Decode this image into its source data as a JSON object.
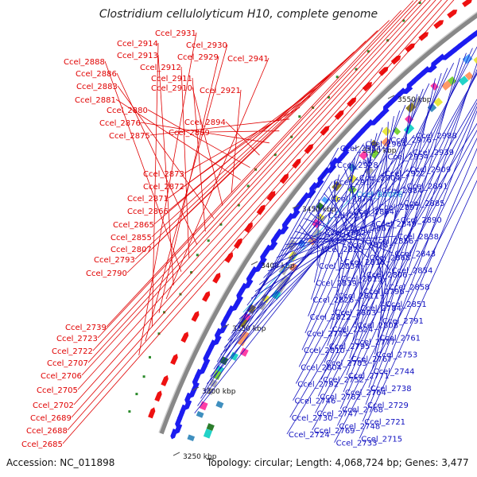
{
  "title": "Clostridium cellulolyticum H10, complete genome",
  "accession": "Accession: NC_011898",
  "summary": "Topology: circular; Length: 4,068,724 bp; Genes: 3,477",
  "colors": {
    "left_label": "#e00000",
    "right_label": "#1010c0",
    "rna_label": "#22aadd",
    "backbone": "#888888",
    "cds_blue": "#1c1cf0",
    "cds_red": "#ee1111"
  },
  "kbp_ticks": [
    {
      "label": "3550 kbp"
    },
    {
      "label": "3500 kbp"
    },
    {
      "label": "3450 kbp"
    },
    {
      "label": "3400 kbp"
    },
    {
      "label": "3350 kbp"
    },
    {
      "label": "3300 kbp"
    },
    {
      "label": "3250 kbp"
    }
  ],
  "left_labels": [
    "Ccel_2931",
    "Ccel_2930",
    "Ccel_2914",
    "Ccel_2929",
    "Ccel_2941",
    "Ccel_2913",
    "Ccel_2888",
    "Ccel_2912",
    "Ccel_2886",
    "Ccel_2911",
    "Ccel_2883",
    "Ccel_2910",
    "Ccel_2921",
    "Ccel_2881",
    "Ccel_2880",
    "Ccel_2894",
    "Ccel_2876",
    "Ccel_2889",
    "Ccel_2875",
    "Ccel_2873",
    "Ccel_2872",
    "Ccel_2871",
    "Ccel_2866",
    "Ccel_2865",
    "Ccel_2855",
    "Ccel_2807",
    "Ccel_2793",
    "Ccel_2790",
    "Ccel_2739",
    "Ccel_2723",
    "Ccel_2722",
    "Ccel_2707",
    "Ccel_2706",
    "Ccel_2705",
    "Ccel_2702",
    "Ccel_2689",
    "Ccel_2688",
    "Ccel_2685"
  ],
  "right_labels": [
    "Ccel_2988",
    "Ccel_2976",
    "Ccel_2964",
    "Ccel_2954",
    "Ccel_2939",
    "Ccel_2934",
    "alr",
    "Ccel_2928",
    "Ccel_2909",
    "Ccel_2922",
    "Ccel_2904",
    "Ccel_2917",
    "Ccel_2891",
    "Ccel_2884",
    "Ccel_R0066",
    "Ccel_2874",
    "Ccel_2885",
    "Ccel_2897",
    "Ccel_2864",
    "Ccel_2877",
    "Ccel_2890",
    "Ccel_2849",
    "Ccel_2867",
    "Ccel_2882",
    "Ccel_2838",
    "Ccel_2856",
    "Ccel_2878",
    "Ccel_2825",
    "Ccel_2843",
    "Ccel_2868",
    "Ccel_2818",
    "Ccel_2834",
    "Ccel_2854",
    "Ccel_2806",
    "Ccel_2819",
    "Ccel_2839",
    "Ccel_2858",
    "Ccel_2796",
    "Ccel_2811",
    "Ccel_2826",
    "Ccel_2851",
    "Ccel_2784",
    "Ccel_2803",
    "Ccel_2822",
    "Ccel_2791",
    "Ccel_2808",
    "Ccel_2824",
    "Ccel_2775",
    "Ccel_2761",
    "Ccel_2777",
    "Ccel_2795",
    "Ccel_2810",
    "Ccel_2753",
    "Ccel_2767",
    "Ccel_2783",
    "Ccel_2804",
    "Ccel_2744",
    "Ccel_2771",
    "Ccel_2752",
    "Ccel_2792",
    "Ccel_2738",
    "Ccel_2764",
    "Ccel_2782",
    "Ccel_2746",
    "Ccel_2729",
    "Ccel_2768",
    "Ccel_2747",
    "Ccel_2730",
    "Ccel_2721",
    "Ccel_2748",
    "Ccel_2769",
    "Ccel_2724",
    "Ccel_2715",
    "Ccel_2733"
  ]
}
